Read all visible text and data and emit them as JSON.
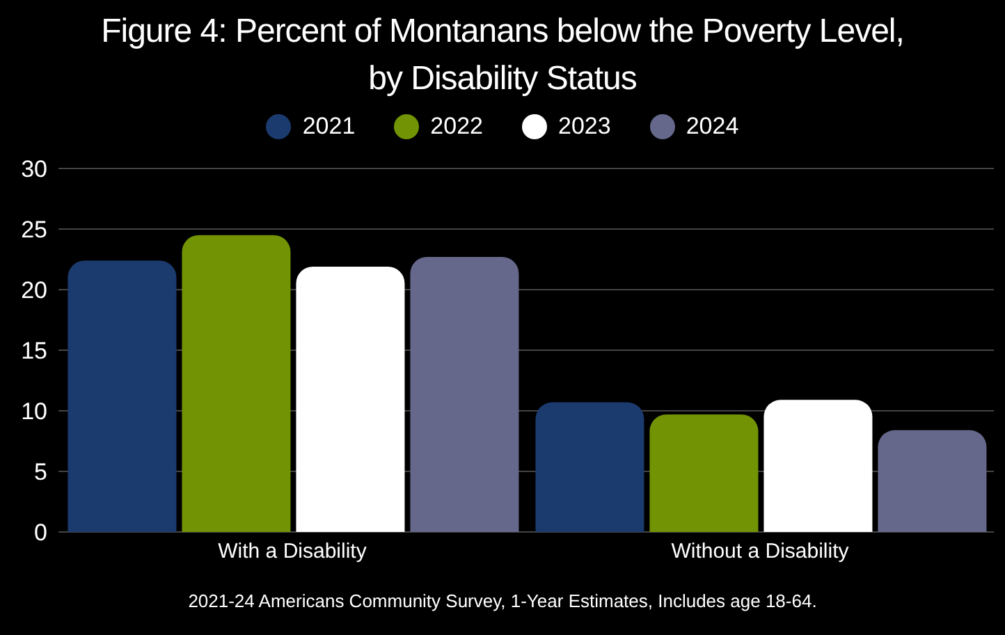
{
  "chart_data": {
    "type": "bar",
    "title": "Figure 4: Percent of Montanans below the Poverty Level, by Disability Status",
    "categories": [
      "With a Disability",
      "Without a Disability"
    ],
    "series": [
      {
        "name": "2021",
        "color": "#1b3a6e",
        "values": [
          22.4,
          10.7
        ]
      },
      {
        "name": "2022",
        "color": "#729404",
        "values": [
          24.5,
          9.7
        ]
      },
      {
        "name": "2023",
        "color": "#ffffff",
        "values": [
          21.9,
          10.9
        ]
      },
      {
        "name": "2024",
        "color": "#65688b",
        "values": [
          22.7,
          8.4
        ]
      }
    ],
    "ylim": [
      0,
      30
    ],
    "yticks": [
      0,
      5,
      10,
      15,
      20,
      25,
      30
    ],
    "grid": "y",
    "legend": "top",
    "annotations": [
      "2021-24 Americans Community Survey, 1-Year Estimates, Includes age 18-64."
    ]
  }
}
